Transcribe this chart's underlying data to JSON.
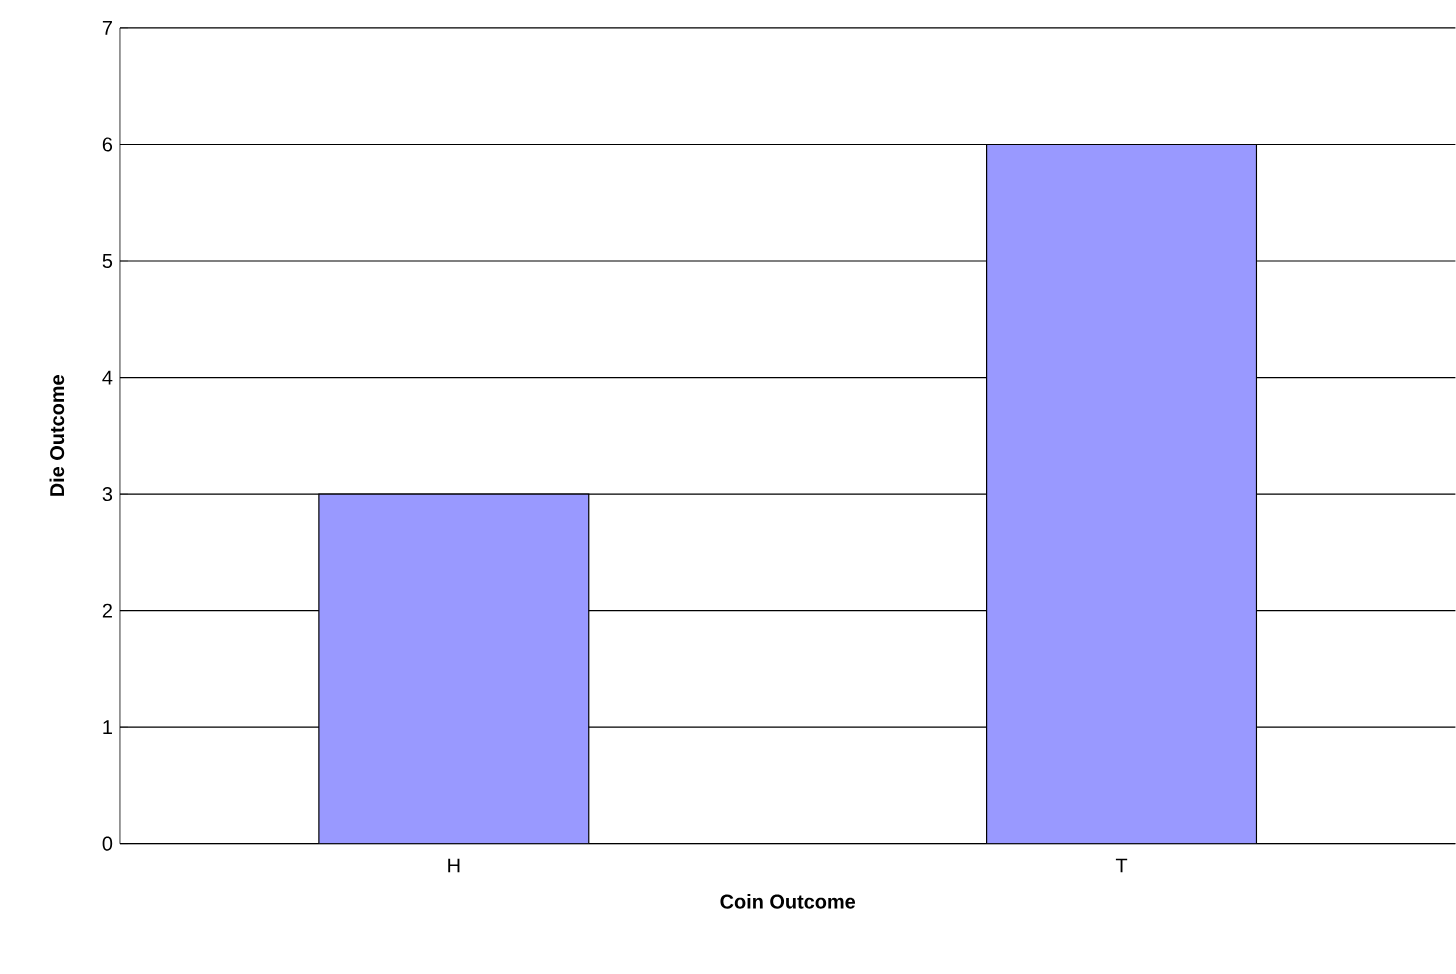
{
  "chart_data": {
    "type": "bar",
    "xlabel": "Coin Outcome",
    "ylabel": "Die Outcome",
    "categories": [
      "H",
      "T"
    ],
    "values": [
      3,
      6
    ],
    "color": "#9999ff",
    "ylim": [
      0,
      7
    ],
    "yticks": [
      0,
      1,
      2,
      3,
      4,
      5,
      6,
      7
    ],
    "grid": "y"
  }
}
